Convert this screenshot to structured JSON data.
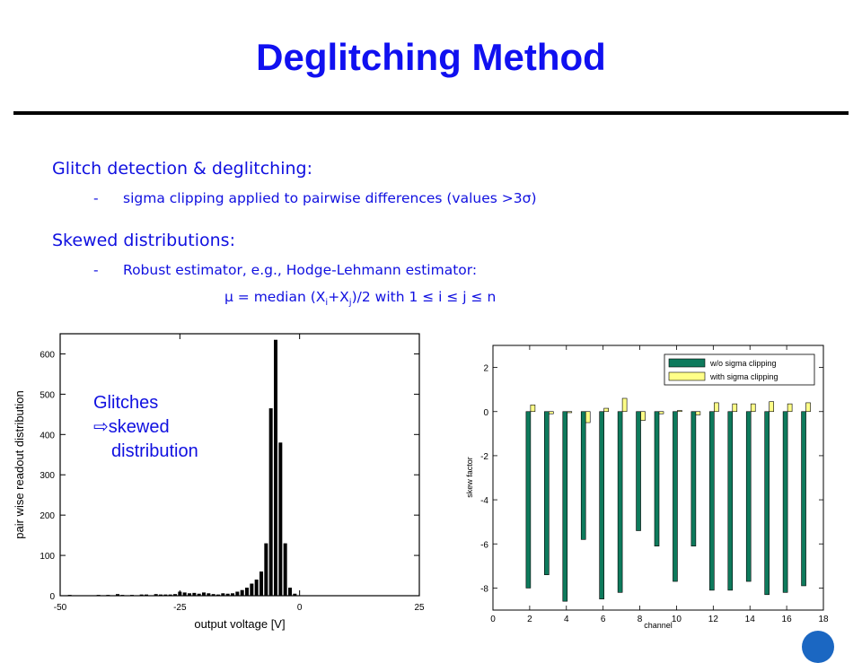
{
  "title": "Deglitching Method",
  "sections": [
    {
      "heading": "Glitch detection & deglitching:",
      "bullets": [
        {
          "dash": "-",
          "text": "sigma clipping applied to pairwise differences (values >3σ)"
        }
      ]
    },
    {
      "heading": "Skewed distributions:",
      "bullets": [
        {
          "dash": "-",
          "text": "Robust estimator, e.g., Hodge-Lehmann estimator:"
        }
      ]
    }
  ],
  "formula": {
    "lead": "μ = median (X",
    "i": "i",
    "plus": "+X",
    "j": "j",
    "tail": ")/2 with 1 ≤ i ≤ j ≤ n"
  },
  "annotation": {
    "line1": "Glitches",
    "arrow": "⇨",
    "line2": "skewed",
    "line3": "distribution"
  },
  "colors": {
    "accent": "#1010f0",
    "bar_wo": "#0e7a5c",
    "bar_with": "#ffff88"
  },
  "logo_icon": "circle-logo-icon",
  "chart_data": [
    {
      "type": "bar",
      "title": "",
      "xlabel": "output voltage [V]",
      "ylabel": "pair wise readout distribution",
      "xlim": [
        -50,
        25
      ],
      "ylim": [
        0,
        650
      ],
      "xticks": [
        -50,
        -25,
        0,
        25
      ],
      "yticks": [
        0,
        100,
        200,
        300,
        400,
        500,
        600
      ],
      "x": [
        -48,
        -42,
        -40,
        -38,
        -37,
        -35,
        -33,
        -32,
        -30,
        -29,
        -28,
        -27,
        -26,
        -25,
        -24,
        -23,
        -22,
        -21,
        -20,
        -19,
        -18,
        -17,
        -16,
        -15,
        -14,
        -13,
        -12,
        -11,
        -10,
        -9,
        -8,
        -7,
        -6,
        -5,
        -4,
        -3,
        -2,
        -1
      ],
      "values": [
        2,
        2,
        2,
        4,
        2,
        2,
        3,
        3,
        4,
        3,
        3,
        3,
        4,
        10,
        8,
        6,
        7,
        5,
        8,
        6,
        4,
        3,
        6,
        5,
        6,
        10,
        14,
        20,
        30,
        40,
        60,
        130,
        465,
        635,
        380,
        130,
        20,
        5
      ]
    },
    {
      "type": "bar",
      "title": "",
      "xlabel": "channel",
      "ylabel": "skew factor",
      "xlim": [
        0,
        18
      ],
      "ylim": [
        -9,
        3
      ],
      "xticks": [
        0,
        2,
        4,
        6,
        8,
        10,
        12,
        14,
        16,
        18
      ],
      "yticks": [
        2,
        0,
        -2,
        -4,
        -6,
        -8
      ],
      "legend_position": "top-right",
      "categories": [
        2,
        3,
        4,
        5,
        6,
        7,
        8,
        9,
        10,
        11,
        12,
        13,
        14,
        15,
        16,
        17
      ],
      "series": [
        {
          "name": "w/o sigma clipping",
          "values": [
            -8.0,
            -7.4,
            -8.6,
            -5.8,
            -8.5,
            -8.2,
            -5.4,
            -6.1,
            -7.7,
            -6.1,
            -8.1,
            -8.1,
            -7.7,
            -8.3,
            -8.2,
            -7.9
          ]
        },
        {
          "name": "with sigma clipping",
          "values": [
            0.3,
            -0.1,
            -0.05,
            -0.5,
            0.15,
            0.6,
            -0.4,
            -0.1,
            0.05,
            -0.15,
            0.4,
            0.35,
            0.35,
            0.45,
            0.35,
            0.4
          ]
        }
      ]
    }
  ]
}
